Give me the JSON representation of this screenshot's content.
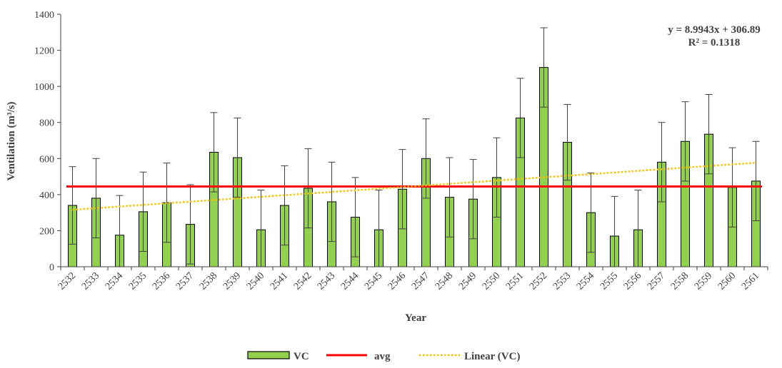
{
  "chart_data": {
    "type": "bar",
    "title": "",
    "xlabel": "Year",
    "ylabel": "Ventilation (m³/s)",
    "ylim": [
      0,
      1400
    ],
    "yticks": [
      0,
      200,
      400,
      600,
      800,
      1000,
      1200,
      1400
    ],
    "grid": false,
    "categories": [
      "2532",
      "2533",
      "2534",
      "2535",
      "2536",
      "2537",
      "2538",
      "2539",
      "2540",
      "2541",
      "2542",
      "2543",
      "2544",
      "2545",
      "2546",
      "2547",
      "2548",
      "2549",
      "2550",
      "2551",
      "2552",
      "2553",
      "2554",
      "2555",
      "2556",
      "2557",
      "2558",
      "2559",
      "2560",
      "2561"
    ],
    "series": [
      {
        "name": "VC",
        "color": "#92d050",
        "values": [
          340,
          380,
          175,
          305,
          355,
          235,
          635,
          605,
          205,
          340,
          435,
          360,
          275,
          205,
          430,
          600,
          385,
          375,
          495,
          825,
          1105,
          690,
          300,
          170,
          205,
          580,
          695,
          735,
          440,
          475
        ],
        "error": [
          215,
          220,
          220,
          220,
          220,
          220,
          220,
          220,
          220,
          220,
          220,
          220,
          220,
          220,
          220,
          220,
          220,
          220,
          220,
          220,
          220,
          210,
          220,
          220,
          220,
          220,
          220,
          220,
          220,
          220
        ]
      },
      {
        "name": "avg",
        "color": "#ff0000",
        "value": 445
      },
      {
        "name": "Linear (VC)",
        "color": "#ffc000",
        "slope": 8.9943,
        "intercept": 306.89
      }
    ],
    "annotation": {
      "line1": "y = 8.9943x + 306.89",
      "line2": "R² = 0.1318"
    },
    "legend_position": "bottom"
  }
}
